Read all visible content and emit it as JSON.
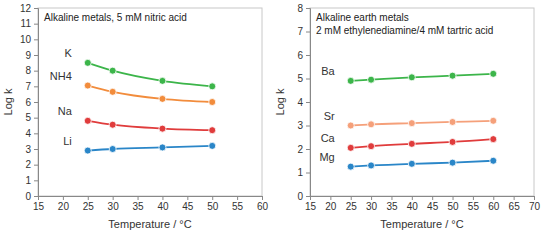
{
  "chart_data": [
    {
      "type": "line",
      "title": "Alkaline metals, 5 mM nitric acid",
      "x_label": "Temperature / °C",
      "y_label": "Log k",
      "x": [
        25,
        30,
        40,
        50
      ],
      "series": [
        {
          "name": "K",
          "color": "#3cb54a",
          "values": [
            8.5,
            8.0,
            7.35,
            7.0
          ]
        },
        {
          "name": "NH4",
          "color": "#f28c3c",
          "values": [
            7.05,
            6.65,
            6.2,
            6.0
          ]
        },
        {
          "name": "Na",
          "color": "#e03c3c",
          "values": [
            4.8,
            4.55,
            4.3,
            4.2
          ]
        },
        {
          "name": "Li",
          "color": "#2a86c8",
          "values": [
            2.9,
            3.0,
            3.1,
            3.2
          ]
        }
      ],
      "xlim": [
        15,
        60
      ],
      "xticks": [
        15,
        20,
        25,
        30,
        35,
        40,
        45,
        50,
        55,
        60
      ],
      "ylim": [
        0,
        12
      ],
      "yticks": [
        0,
        1,
        2,
        3,
        4,
        5,
        6,
        7,
        8,
        9,
        10,
        11,
        12
      ],
      "grid": false,
      "marker": "circle"
    },
    {
      "type": "line",
      "title": "Alkaline earth metals",
      "subtitle": "2 mM ethylenediamine/4 mM tartric acid",
      "x_label": "Temperature / °C",
      "y_label": "Log k",
      "x": [
        25,
        30,
        40,
        50,
        60
      ],
      "series": [
        {
          "name": "Ba",
          "color": "#3cb54a",
          "values": [
            4.9,
            4.95,
            5.05,
            5.12,
            5.2
          ]
        },
        {
          "name": "Sr",
          "color": "#f5a07a",
          "values": [
            3.0,
            3.05,
            3.1,
            3.15,
            3.2
          ]
        },
        {
          "name": "Ca",
          "color": "#e03c3c",
          "values": [
            2.05,
            2.12,
            2.22,
            2.3,
            2.42
          ]
        },
        {
          "name": "Mg",
          "color": "#2a86c8",
          "values": [
            1.25,
            1.3,
            1.37,
            1.42,
            1.5
          ]
        }
      ],
      "xlim": [
        15,
        70
      ],
      "xticks": [
        15,
        20,
        25,
        30,
        35,
        40,
        45,
        50,
        55,
        60,
        65,
        70
      ],
      "ylim": [
        0,
        8
      ],
      "yticks": [
        0,
        1,
        2,
        3,
        4,
        5,
        6,
        7,
        8
      ],
      "grid": false,
      "marker": "circle"
    }
  ]
}
